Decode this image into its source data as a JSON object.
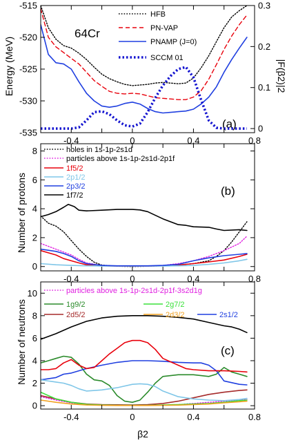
{
  "chart_data": [
    {
      "type": "line",
      "panel_label": "(a)",
      "annotation": "64Cr",
      "ylabel": "Energy (MeV)",
      "ylabel_right": "|F(β2)|2",
      "xlim": [
        -0.6,
        0.8
      ],
      "ylim": [
        -535,
        -515
      ],
      "ylim_right": [
        -0.01,
        0.3
      ],
      "xticks": [
        "-0.4",
        "0",
        "0.4",
        "0.8"
      ],
      "yticks": [
        -535,
        -530,
        -525,
        -520,
        -515
      ],
      "yticks_right": [
        0,
        0.1,
        0.2,
        0.3
      ],
      "legend_position": "top-right",
      "series": [
        {
          "name": "HFB",
          "color": "#000000",
          "dash": "dotted",
          "x": [
            -0.6,
            -0.55,
            -0.5,
            -0.45,
            -0.4,
            -0.35,
            -0.3,
            -0.25,
            -0.2,
            -0.15,
            -0.1,
            -0.05,
            0,
            0.05,
            0.1,
            0.15,
            0.2,
            0.25,
            0.3,
            0.35,
            0.4,
            0.45,
            0.5,
            0.55,
            0.6,
            0.65,
            0.7,
            0.75
          ],
          "y": [
            -515,
            -518.5,
            -520.3,
            -521.3,
            -521.7,
            -522.5,
            -523.5,
            -524.7,
            -525.8,
            -526.5,
            -527,
            -527.4,
            -527.6,
            -527.5,
            -527.4,
            -527.2,
            -527.1,
            -527.2,
            -527.3,
            -527.2,
            -526.4,
            -524.8,
            -522.9,
            -520.7,
            -518.5,
            -516.8,
            -515.8,
            -515
          ]
        },
        {
          "name": "PN-VAP",
          "color": "#e8000b",
          "dash": "dashed",
          "x": [
            -0.6,
            -0.55,
            -0.5,
            -0.45,
            -0.4,
            -0.35,
            -0.3,
            -0.25,
            -0.2,
            -0.15,
            -0.1,
            -0.05,
            0,
            0.05,
            0.1,
            0.15,
            0.2,
            0.25,
            0.3,
            0.35,
            0.4,
            0.45,
            0.5,
            0.55,
            0.6,
            0.65,
            0.7,
            0.75
          ],
          "y": [
            -515.5,
            -520,
            -521.5,
            -522.4,
            -523.3,
            -524.2,
            -525.5,
            -526.8,
            -527.7,
            -528.5,
            -528.8,
            -528.9,
            -528.8,
            -528.9,
            -529.2,
            -529.5,
            -529.6,
            -529.7,
            -529.8,
            -529.8,
            -529.4,
            -528.4,
            -526.6,
            -524.3,
            -521.9,
            -519.8,
            -518,
            -516.5
          ]
        },
        {
          "name": "PNAMP (J=0)",
          "color": "#1f3fe0",
          "dash": "solid",
          "x": [
            -0.6,
            -0.55,
            -0.5,
            -0.45,
            -0.4,
            -0.35,
            -0.3,
            -0.25,
            -0.2,
            -0.15,
            -0.1,
            -0.05,
            0,
            0.05,
            0.1,
            0.15,
            0.2,
            0.25,
            0.3,
            0.35,
            0.4,
            0.45,
            0.5,
            0.55,
            0.6,
            0.65,
            0.7,
            0.75
          ],
          "y": [
            -518,
            -522.7,
            -524,
            -524.2,
            -525,
            -527,
            -528.8,
            -530,
            -530.8,
            -531,
            -530.8,
            -530.4,
            -530.2,
            -530.5,
            -531.2,
            -531.7,
            -531.9,
            -531.8,
            -531.7,
            -531.6,
            -531.3,
            -530.5,
            -529.4,
            -527.8,
            -525.5,
            -523.5,
            -521.7,
            -520
          ]
        },
        {
          "name": "SCCM 01",
          "color": "#1515d0",
          "dash": "thick-dotted",
          "axis": "right",
          "x": [
            -0.6,
            -0.5,
            -0.4,
            -0.35,
            -0.3,
            -0.25,
            -0.2,
            -0.15,
            -0.1,
            -0.05,
            0,
            0.05,
            0.1,
            0.15,
            0.2,
            0.25,
            0.3,
            0.35,
            0.4,
            0.45,
            0.5,
            0.55,
            0.6,
            0.65,
            0.75
          ],
          "y": [
            0,
            0,
            0,
            0.003,
            0.02,
            0.04,
            0.042,
            0.035,
            0.02,
            0.008,
            0.005,
            0.012,
            0.04,
            0.075,
            0.105,
            0.128,
            0.145,
            0.15,
            0.125,
            0.07,
            0.02,
            0.002,
            0,
            0,
            0
          ]
        }
      ]
    },
    {
      "type": "line",
      "panel_label": "(b)",
      "ylabel": "Number of protons",
      "xlim": [
        -0.6,
        0.8
      ],
      "ylim": [
        -0.3,
        8.5
      ],
      "xticks": [
        "-0.4",
        "0",
        "0.4",
        "0.8"
      ],
      "yticks": [
        0,
        2,
        4,
        6,
        8
      ],
      "legend_position": "top-left",
      "series": [
        {
          "name": "holes in 1s-1p-2s1d",
          "color": "#000000",
          "dash": "dotted",
          "x": [
            -0.6,
            -0.55,
            -0.5,
            -0.45,
            -0.4,
            -0.35,
            -0.3,
            -0.25,
            -0.2,
            -0.1,
            0,
            0.1,
            0.2,
            0.3,
            0.4,
            0.5,
            0.55,
            0.6,
            0.65,
            0.7,
            0.75
          ],
          "y": [
            3.5,
            3,
            2.8,
            2.4,
            1.8,
            1.2,
            0.7,
            0.3,
            0.1,
            0.02,
            0,
            0.02,
            0.05,
            0.1,
            0.2,
            0.4,
            0.7,
            1.1,
            1.7,
            2.4,
            3.1
          ]
        },
        {
          "name": "particles above 1s-1p-2s1d-2p1f",
          "color": "#e020e0",
          "dash": "dotted",
          "x": [
            -0.6,
            -0.5,
            -0.4,
            -0.35,
            -0.3,
            -0.2,
            -0.1,
            0,
            0.1,
            0.2,
            0.3,
            0.4,
            0.5,
            0.6,
            0.7,
            0.75
          ],
          "y": [
            1.6,
            1.2,
            0.8,
            0.5,
            0.25,
            0.08,
            0.03,
            0.02,
            0.03,
            0.08,
            0.2,
            0.4,
            0.7,
            1.1,
            1.6,
            2.1
          ]
        },
        {
          "name": "1f5/2",
          "color": "#e8000b",
          "dash": "solid",
          "x": [
            -0.6,
            -0.5,
            -0.45,
            -0.4,
            -0.35,
            -0.3,
            -0.2,
            -0.1,
            0,
            0.1,
            0.2,
            0.3,
            0.4,
            0.5,
            0.6,
            0.7,
            0.75
          ],
          "y": [
            1.1,
            0.8,
            0.55,
            0.4,
            0.25,
            0.12,
            0.05,
            0.03,
            0.03,
            0.03,
            0.05,
            0.1,
            0.2,
            0.32,
            0.45,
            0.7,
            0.85
          ]
        },
        {
          "name": "2p1/2",
          "color": "#7fc6e8",
          "dash": "solid",
          "x": [
            -0.6,
            -0.5,
            -0.4,
            -0.3,
            -0.2,
            -0.1,
            0,
            0.1,
            0.2,
            0.3,
            0.4,
            0.5,
            0.6,
            0.7,
            0.75
          ],
          "y": [
            0.2,
            0.12,
            0.08,
            0.05,
            0.04,
            0.03,
            0.03,
            0.03,
            0.04,
            0.05,
            0.08,
            0.15,
            0.25,
            0.4,
            0.5
          ]
        },
        {
          "name": "2p3/2",
          "color": "#1f3fe0",
          "dash": "solid",
          "x": [
            -0.6,
            -0.5,
            -0.45,
            -0.4,
            -0.35,
            -0.3,
            -0.2,
            -0.1,
            0,
            0.1,
            0.2,
            0.3,
            0.4,
            0.5,
            0.6,
            0.7,
            0.75
          ],
          "y": [
            1.2,
            1.05,
            0.9,
            0.7,
            0.4,
            0.2,
            0.08,
            0.05,
            0.05,
            0.05,
            0.08,
            0.15,
            0.4,
            0.6,
            0.75,
            0.85,
            0.9
          ]
        },
        {
          "name": "1f7/2",
          "color": "#000000",
          "dash": "solid",
          "x": [
            -0.6,
            -0.55,
            -0.5,
            -0.45,
            -0.42,
            -0.38,
            -0.35,
            -0.3,
            -0.2,
            -0.1,
            0,
            0.05,
            0.1,
            0.2,
            0.3,
            0.35,
            0.4,
            0.5,
            0.55,
            0.6,
            0.7,
            0.75
          ],
          "y": [
            3.45,
            3.6,
            3.8,
            4.1,
            4.3,
            4.15,
            3.9,
            3.85,
            3.9,
            3.95,
            3.95,
            3.92,
            3.8,
            3.3,
            2.9,
            2.85,
            2.75,
            2.72,
            2.6,
            2.5,
            2.55,
            2.5
          ]
        }
      ]
    },
    {
      "type": "line",
      "panel_label": "(c)",
      "ylabel": "Number of neutrons",
      "xlabel": "β2",
      "xlim": [
        -0.6,
        0.8
      ],
      "ylim": [
        -0.3,
        11
      ],
      "xticks": [
        "-0.4",
        "0",
        "0.4",
        "0.8"
      ],
      "yticks": [
        0,
        2,
        4,
        6,
        8,
        10
      ],
      "legend_position": "top",
      "series": [
        {
          "name": "particles above 1s-1p-2s1d-2p1f-3s2d1g",
          "color": "#e020e0",
          "dash": "dotted",
          "x": [
            -0.6,
            -0.5,
            -0.4,
            -0.3,
            -0.2,
            -0.1,
            0,
            0.1,
            0.2,
            0.3,
            0.4,
            0.5,
            0.6,
            0.7,
            0.75
          ],
          "y": [
            0.8,
            0.5,
            0.25,
            0.1,
            0.05,
            0.03,
            0.03,
            0.03,
            0.05,
            0.1,
            0.2,
            0.3,
            0.4,
            0.5,
            0.55
          ]
        },
        {
          "name": "1g9/2",
          "color": "#2a8a2a",
          "dash": "solid",
          "x": [
            -0.6,
            -0.55,
            -0.5,
            -0.45,
            -0.4,
            -0.35,
            -0.3,
            -0.25,
            -0.2,
            -0.15,
            -0.1,
            -0.05,
            0,
            0.05,
            0.1,
            0.15,
            0.2,
            0.3,
            0.4,
            0.5,
            0.55,
            0.6,
            0.65,
            0.7,
            0.75
          ],
          "y": [
            3.8,
            4,
            4.2,
            4.4,
            4.3,
            3.7,
            2.8,
            2.3,
            2.2,
            1.8,
            0.9,
            0.4,
            0.3,
            0.5,
            1.2,
            2,
            2.6,
            2.75,
            2.75,
            2.6,
            2.8,
            3.4,
            3,
            2.8,
            2.6
          ]
        },
        {
          "name": "2d5/2",
          "color": "#a52a2a",
          "dash": "solid",
          "x": [
            -0.6,
            -0.5,
            -0.4,
            -0.3,
            -0.2,
            -0.1,
            0,
            0.1,
            0.2,
            0.3,
            0.4,
            0.5,
            0.6,
            0.7,
            0.75
          ],
          "y": [
            0.9,
            0.6,
            0.3,
            0.15,
            0.1,
            0.08,
            0.07,
            0.1,
            0.2,
            0.4,
            0.7,
            1,
            1.2,
            1.35,
            1.4
          ]
        },
        {
          "name": "2g7/2",
          "color": "#3ae03a",
          "dash": "solid",
          "x": [
            -0.6,
            -0.5,
            -0.4,
            -0.3,
            -0.2,
            -0.1,
            0,
            0.1,
            0.2,
            0.3,
            0.4,
            0.5,
            0.6,
            0.7,
            0.75
          ],
          "y": [
            1.2,
            0.6,
            0.3,
            0.12,
            0.06,
            0.04,
            0.03,
            0.04,
            0.06,
            0.1,
            0.15,
            0.2,
            0.3,
            0.45,
            0.5
          ]
        },
        {
          "name": "2d3/2",
          "color": "#f0a020",
          "dash": "solid",
          "x": [
            -0.6,
            -0.5,
            -0.4,
            -0.3,
            -0.2,
            -0.1,
            0,
            0.1,
            0.2,
            0.3,
            0.4,
            0.5,
            0.6,
            0.7,
            0.75
          ],
          "y": [
            0.5,
            0.3,
            0.15,
            0.06,
            0.03,
            0.02,
            0.02,
            0.02,
            0.03,
            0.05,
            0.1,
            0.15,
            0.25,
            0.35,
            0.4
          ]
        },
        {
          "name": "2s1/2",
          "color": "#1f3fe0",
          "dash": "solid",
          "x": [
            -0.6,
            -0.5,
            -0.45,
            -0.4,
            -0.3,
            -0.2,
            -0.1,
            0,
            0.1,
            0.2,
            0.3,
            0.4,
            0.45,
            0.5,
            0.55,
            0.6,
            0.7,
            0.75
          ],
          "y": [
            2.3,
            2.5,
            2.8,
            2.9,
            3.3,
            3.6,
            3.85,
            4,
            4,
            3.95,
            3.85,
            3.8,
            3.8,
            3.6,
            3.1,
            2.2,
            1.9,
            1.85
          ]
        },
        {
          "name": "",
          "color": "#e8000b",
          "dash": "solid",
          "x": [
            -0.6,
            -0.55,
            -0.5,
            -0.45,
            -0.4,
            -0.35,
            -0.3,
            -0.25,
            -0.2,
            -0.15,
            -0.1,
            -0.05,
            0,
            0.05,
            0.1,
            0.15,
            0.2,
            0.25,
            0.3,
            0.35,
            0.4,
            0.5,
            0.6,
            0.7,
            0.75
          ],
          "y": [
            3.2,
            3.2,
            3.3,
            3.8,
            4.1,
            3.6,
            3.3,
            3.4,
            4,
            4.6,
            5.1,
            5.6,
            5.8,
            5.8,
            5.6,
            5,
            4.2,
            3.9,
            3.6,
            3.3,
            3.2,
            3.1,
            3.1,
            3.05,
            3
          ]
        },
        {
          "name": "",
          "color": "#7fc6e8",
          "dash": "solid",
          "x": [
            -0.6,
            -0.5,
            -0.45,
            -0.4,
            -0.35,
            -0.3,
            -0.2,
            -0.1,
            0,
            0.05,
            0.1,
            0.15,
            0.2,
            0.3,
            0.4,
            0.5,
            0.6,
            0.7,
            0.75
          ],
          "y": [
            2.3,
            2.1,
            2,
            1.8,
            1.5,
            1.3,
            1.4,
            1.6,
            1.9,
            1.95,
            1.9,
            1.7,
            1.3,
            0.8,
            0.6,
            0.5,
            0.45,
            0.55,
            0.65
          ]
        },
        {
          "name": "",
          "color": "#000000",
          "dash": "solid",
          "x": [
            -0.6,
            -0.5,
            -0.4,
            -0.3,
            -0.2,
            -0.1,
            0,
            0.1,
            0.2,
            0.3,
            0.4,
            0.5,
            0.6,
            0.65,
            0.7,
            0.75
          ],
          "y": [
            5.9,
            6.4,
            7,
            7.5,
            7.8,
            7.95,
            8,
            8,
            7.95,
            7.85,
            7.7,
            7.4,
            7.1,
            7,
            6.8,
            6.5
          ]
        }
      ]
    }
  ]
}
